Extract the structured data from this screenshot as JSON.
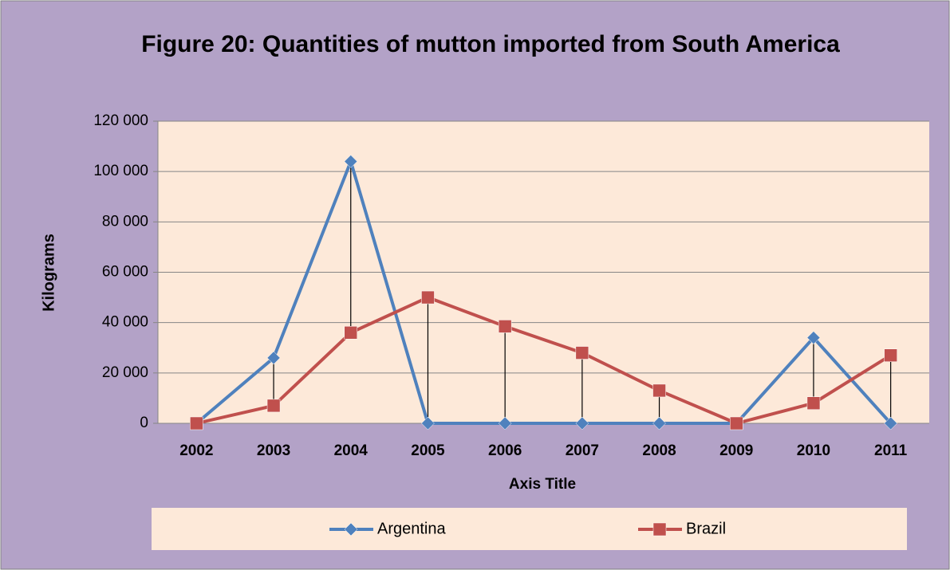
{
  "chart_data": {
    "type": "line",
    "title": "Figure 20: Quantities of mutton imported from South America",
    "x_label": "Axis Title",
    "y_label": "Kilograms",
    "categories": [
      "2002",
      "2003",
      "2004",
      "2005",
      "2006",
      "2007",
      "2008",
      "2009",
      "2010",
      "2011"
    ],
    "series": [
      {
        "name": "Argentina",
        "color": "#4f81bd",
        "marker": "diamond",
        "values": [
          0,
          26000,
          104000,
          0,
          0,
          0,
          0,
          0,
          34000,
          0
        ]
      },
      {
        "name": "Brazil",
        "color": "#c0504d",
        "marker": "square",
        "values": [
          0,
          7000,
          36000,
          50000,
          38500,
          28000,
          13000,
          0,
          8000,
          27000
        ]
      }
    ],
    "ylim": [
      0,
      120000
    ],
    "yticks": [
      0,
      {
        "value": 20000,
        "label": "20 000"
      },
      {
        "value": 40000,
        "label": "40 000"
      },
      {
        "value": 60000,
        "label": "60 000"
      },
      {
        "value": 80000,
        "label": "80 000"
      },
      {
        "value": 100000,
        "label": "100 000"
      },
      {
        "value": 120000,
        "label": "120 000"
      }
    ],
    "grid": true,
    "high_low_lines": true,
    "legend": "bottom"
  }
}
